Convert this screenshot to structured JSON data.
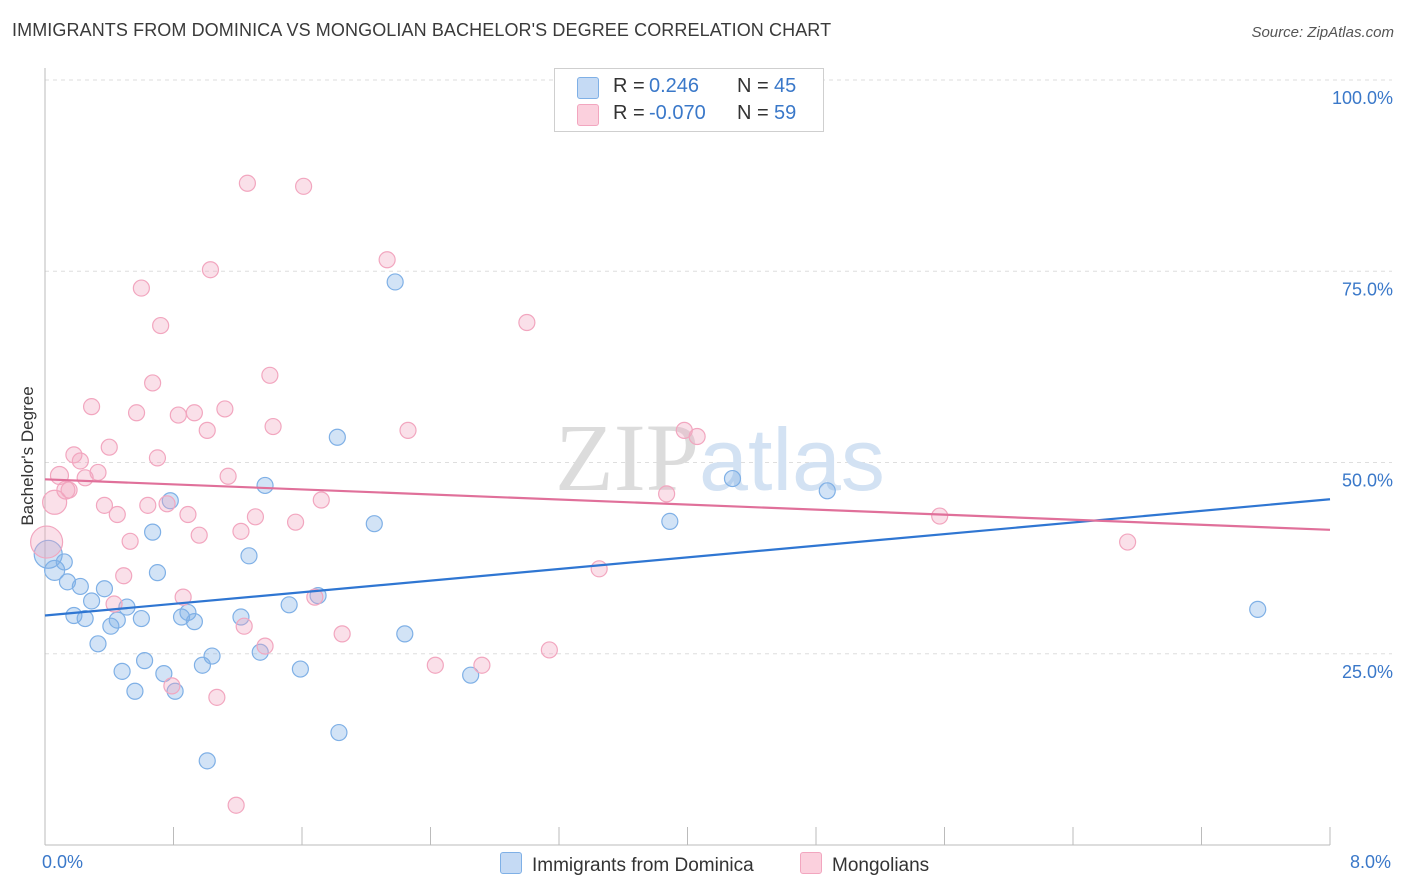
{
  "title": "IMMIGRANTS FROM DOMINICA VS MONGOLIAN BACHELOR'S DEGREE CORRELATION CHART",
  "source": "Source: ZipAtlas.com",
  "watermark": "ZIPatlas",
  "legend": {
    "rows": [
      {
        "r_label": "R =",
        "r_value": "0.246",
        "n_label": "N =",
        "n_value": "45",
        "color": "#a9c9ef"
      },
      {
        "r_label": "R =",
        "r_value": "-0.070",
        "n_label": "N =",
        "n_value": "59",
        "color": "#f5b8cb"
      }
    ]
  },
  "bottom_legend": {
    "series1": "Immigrants from Dominica",
    "series2": "Mongolians"
  },
  "x_axis": {
    "min_label": "0.0%",
    "max_label": "8.0%"
  },
  "chart_data": {
    "type": "scatter",
    "title": "IMMIGRANTS FROM DOMINICA VS MONGOLIAN BACHELOR'S DEGREE CORRELATION CHART",
    "xlabel": "",
    "ylabel": "Bachelor's Degree",
    "xlim": [
      0,
      8
    ],
    "ylim": [
      0,
      100
    ],
    "yticks": [
      25,
      50,
      75,
      100
    ],
    "ytick_labels": [
      "25.0%",
      "50.0%",
      "75.0%",
      "100.0%"
    ],
    "grid": "horizontal dashed",
    "legend_position": "top-center",
    "series": [
      {
        "name": "Immigrants from Dominica",
        "color": "#7fb0e6",
        "line_color": "#2f76d2",
        "trend": {
          "x": [
            0,
            8
          ],
          "y": [
            30.0,
            45.2
          ]
        },
        "points": [
          {
            "x": 0.02,
            "y": 38.0,
            "s": 14
          },
          {
            "x": 0.06,
            "y": 35.9,
            "s": 10
          },
          {
            "x": 0.12,
            "y": 37.0,
            "s": 8
          },
          {
            "x": 0.14,
            "y": 34.4,
            "s": 8
          },
          {
            "x": 0.18,
            "y": 30.0,
            "s": 8
          },
          {
            "x": 0.22,
            "y": 33.8,
            "s": 8
          },
          {
            "x": 0.25,
            "y": 29.6,
            "s": 8
          },
          {
            "x": 0.29,
            "y": 31.9,
            "s": 8
          },
          {
            "x": 0.33,
            "y": 26.3,
            "s": 8
          },
          {
            "x": 0.37,
            "y": 33.5,
            "s": 8
          },
          {
            "x": 0.41,
            "y": 28.6,
            "s": 8
          },
          {
            "x": 0.45,
            "y": 29.4,
            "s": 8
          },
          {
            "x": 0.48,
            "y": 22.7,
            "s": 8
          },
          {
            "x": 0.51,
            "y": 31.1,
            "s": 8
          },
          {
            "x": 0.56,
            "y": 20.1,
            "s": 8
          },
          {
            "x": 0.6,
            "y": 29.6,
            "s": 8
          },
          {
            "x": 0.62,
            "y": 24.1,
            "s": 8
          },
          {
            "x": 0.67,
            "y": 40.9,
            "s": 8
          },
          {
            "x": 0.7,
            "y": 35.6,
            "s": 8
          },
          {
            "x": 0.74,
            "y": 22.4,
            "s": 8
          },
          {
            "x": 0.78,
            "y": 45.0,
            "s": 8
          },
          {
            "x": 0.81,
            "y": 20.1,
            "s": 8
          },
          {
            "x": 0.85,
            "y": 29.8,
            "s": 8
          },
          {
            "x": 0.89,
            "y": 30.4,
            "s": 8
          },
          {
            "x": 0.93,
            "y": 29.2,
            "s": 8
          },
          {
            "x": 0.98,
            "y": 23.5,
            "s": 8
          },
          {
            "x": 1.01,
            "y": 11.0,
            "s": 8
          },
          {
            "x": 1.04,
            "y": 24.7,
            "s": 8
          },
          {
            "x": 1.22,
            "y": 29.8,
            "s": 8
          },
          {
            "x": 1.27,
            "y": 37.8,
            "s": 8
          },
          {
            "x": 1.34,
            "y": 25.2,
            "s": 8
          },
          {
            "x": 1.37,
            "y": 47.0,
            "s": 8
          },
          {
            "x": 1.52,
            "y": 31.4,
            "s": 8
          },
          {
            "x": 1.59,
            "y": 23.0,
            "s": 8
          },
          {
            "x": 1.7,
            "y": 32.6,
            "s": 8
          },
          {
            "x": 1.82,
            "y": 53.3,
            "s": 8
          },
          {
            "x": 1.83,
            "y": 14.7,
            "s": 8
          },
          {
            "x": 2.05,
            "y": 42.0,
            "s": 8
          },
          {
            "x": 2.18,
            "y": 73.6,
            "s": 8
          },
          {
            "x": 2.24,
            "y": 27.6,
            "s": 8
          },
          {
            "x": 2.65,
            "y": 22.2,
            "s": 8
          },
          {
            "x": 3.89,
            "y": 42.3,
            "s": 8
          },
          {
            "x": 4.28,
            "y": 47.9,
            "s": 8
          },
          {
            "x": 4.87,
            "y": 46.3,
            "s": 8
          },
          {
            "x": 7.55,
            "y": 30.8,
            "s": 8
          }
        ]
      },
      {
        "name": "Mongolians",
        "color": "#f2a6bf",
        "line_color": "#e0709a",
        "trend": {
          "x": [
            0,
            8
          ],
          "y": [
            47.8,
            41.2
          ]
        },
        "points": [
          {
            "x": 0.01,
            "y": 39.6,
            "s": 16
          },
          {
            "x": 0.06,
            "y": 44.8,
            "s": 12
          },
          {
            "x": 0.09,
            "y": 48.3,
            "s": 9
          },
          {
            "x": 0.13,
            "y": 46.4,
            "s": 9
          },
          {
            "x": 0.15,
            "y": 46.4,
            "s": 8
          },
          {
            "x": 0.18,
            "y": 51.0,
            "s": 8
          },
          {
            "x": 0.22,
            "y": 50.2,
            "s": 8
          },
          {
            "x": 0.25,
            "y": 48.0,
            "s": 8
          },
          {
            "x": 0.29,
            "y": 57.3,
            "s": 8
          },
          {
            "x": 0.33,
            "y": 48.7,
            "s": 8
          },
          {
            "x": 0.37,
            "y": 44.4,
            "s": 8
          },
          {
            "x": 0.4,
            "y": 52.0,
            "s": 8
          },
          {
            "x": 0.43,
            "y": 31.5,
            "s": 8
          },
          {
            "x": 0.45,
            "y": 43.2,
            "s": 8
          },
          {
            "x": 0.49,
            "y": 35.2,
            "s": 8
          },
          {
            "x": 0.53,
            "y": 39.7,
            "s": 8
          },
          {
            "x": 0.57,
            "y": 56.5,
            "s": 8
          },
          {
            "x": 0.6,
            "y": 72.8,
            "s": 8
          },
          {
            "x": 0.64,
            "y": 44.4,
            "s": 8
          },
          {
            "x": 0.67,
            "y": 60.4,
            "s": 8
          },
          {
            "x": 0.7,
            "y": 50.6,
            "s": 8
          },
          {
            "x": 0.72,
            "y": 67.9,
            "s": 8
          },
          {
            "x": 0.76,
            "y": 44.6,
            "s": 8
          },
          {
            "x": 0.79,
            "y": 20.8,
            "s": 8
          },
          {
            "x": 0.83,
            "y": 56.2,
            "s": 8
          },
          {
            "x": 0.86,
            "y": 32.4,
            "s": 8
          },
          {
            "x": 0.89,
            "y": 43.2,
            "s": 8
          },
          {
            "x": 0.93,
            "y": 56.5,
            "s": 8
          },
          {
            "x": 0.96,
            "y": 40.5,
            "s": 8
          },
          {
            "x": 1.01,
            "y": 54.2,
            "s": 8
          },
          {
            "x": 1.03,
            "y": 75.2,
            "s": 8
          },
          {
            "x": 1.07,
            "y": 19.3,
            "s": 8
          },
          {
            "x": 1.12,
            "y": 57.0,
            "s": 8
          },
          {
            "x": 1.14,
            "y": 48.2,
            "s": 8
          },
          {
            "x": 1.19,
            "y": 5.2,
            "s": 8
          },
          {
            "x": 1.22,
            "y": 41.0,
            "s": 8
          },
          {
            "x": 1.24,
            "y": 28.6,
            "s": 8
          },
          {
            "x": 1.26,
            "y": 86.5,
            "s": 8
          },
          {
            "x": 1.31,
            "y": 42.9,
            "s": 8
          },
          {
            "x": 1.37,
            "y": 26.0,
            "s": 8
          },
          {
            "x": 1.4,
            "y": 61.4,
            "s": 8
          },
          {
            "x": 1.42,
            "y": 54.7,
            "s": 8
          },
          {
            "x": 1.56,
            "y": 42.2,
            "s": 8
          },
          {
            "x": 1.61,
            "y": 86.1,
            "s": 8
          },
          {
            "x": 1.68,
            "y": 32.4,
            "s": 8
          },
          {
            "x": 1.72,
            "y": 45.1,
            "s": 8
          },
          {
            "x": 1.85,
            "y": 27.6,
            "s": 8
          },
          {
            "x": 2.13,
            "y": 76.5,
            "s": 8
          },
          {
            "x": 2.26,
            "y": 54.2,
            "s": 8
          },
          {
            "x": 2.43,
            "y": 23.5,
            "s": 8
          },
          {
            "x": 2.72,
            "y": 23.5,
            "s": 8
          },
          {
            "x": 3.0,
            "y": 68.3,
            "s": 8
          },
          {
            "x": 3.14,
            "y": 25.5,
            "s": 8
          },
          {
            "x": 3.45,
            "y": 36.1,
            "s": 8
          },
          {
            "x": 3.87,
            "y": 45.9,
            "s": 8
          },
          {
            "x": 3.98,
            "y": 54.2,
            "s": 8
          },
          {
            "x": 4.06,
            "y": 53.4,
            "s": 8
          },
          {
            "x": 5.57,
            "y": 43.0,
            "s": 8
          },
          {
            "x": 6.74,
            "y": 39.6,
            "s": 8
          }
        ]
      }
    ]
  }
}
